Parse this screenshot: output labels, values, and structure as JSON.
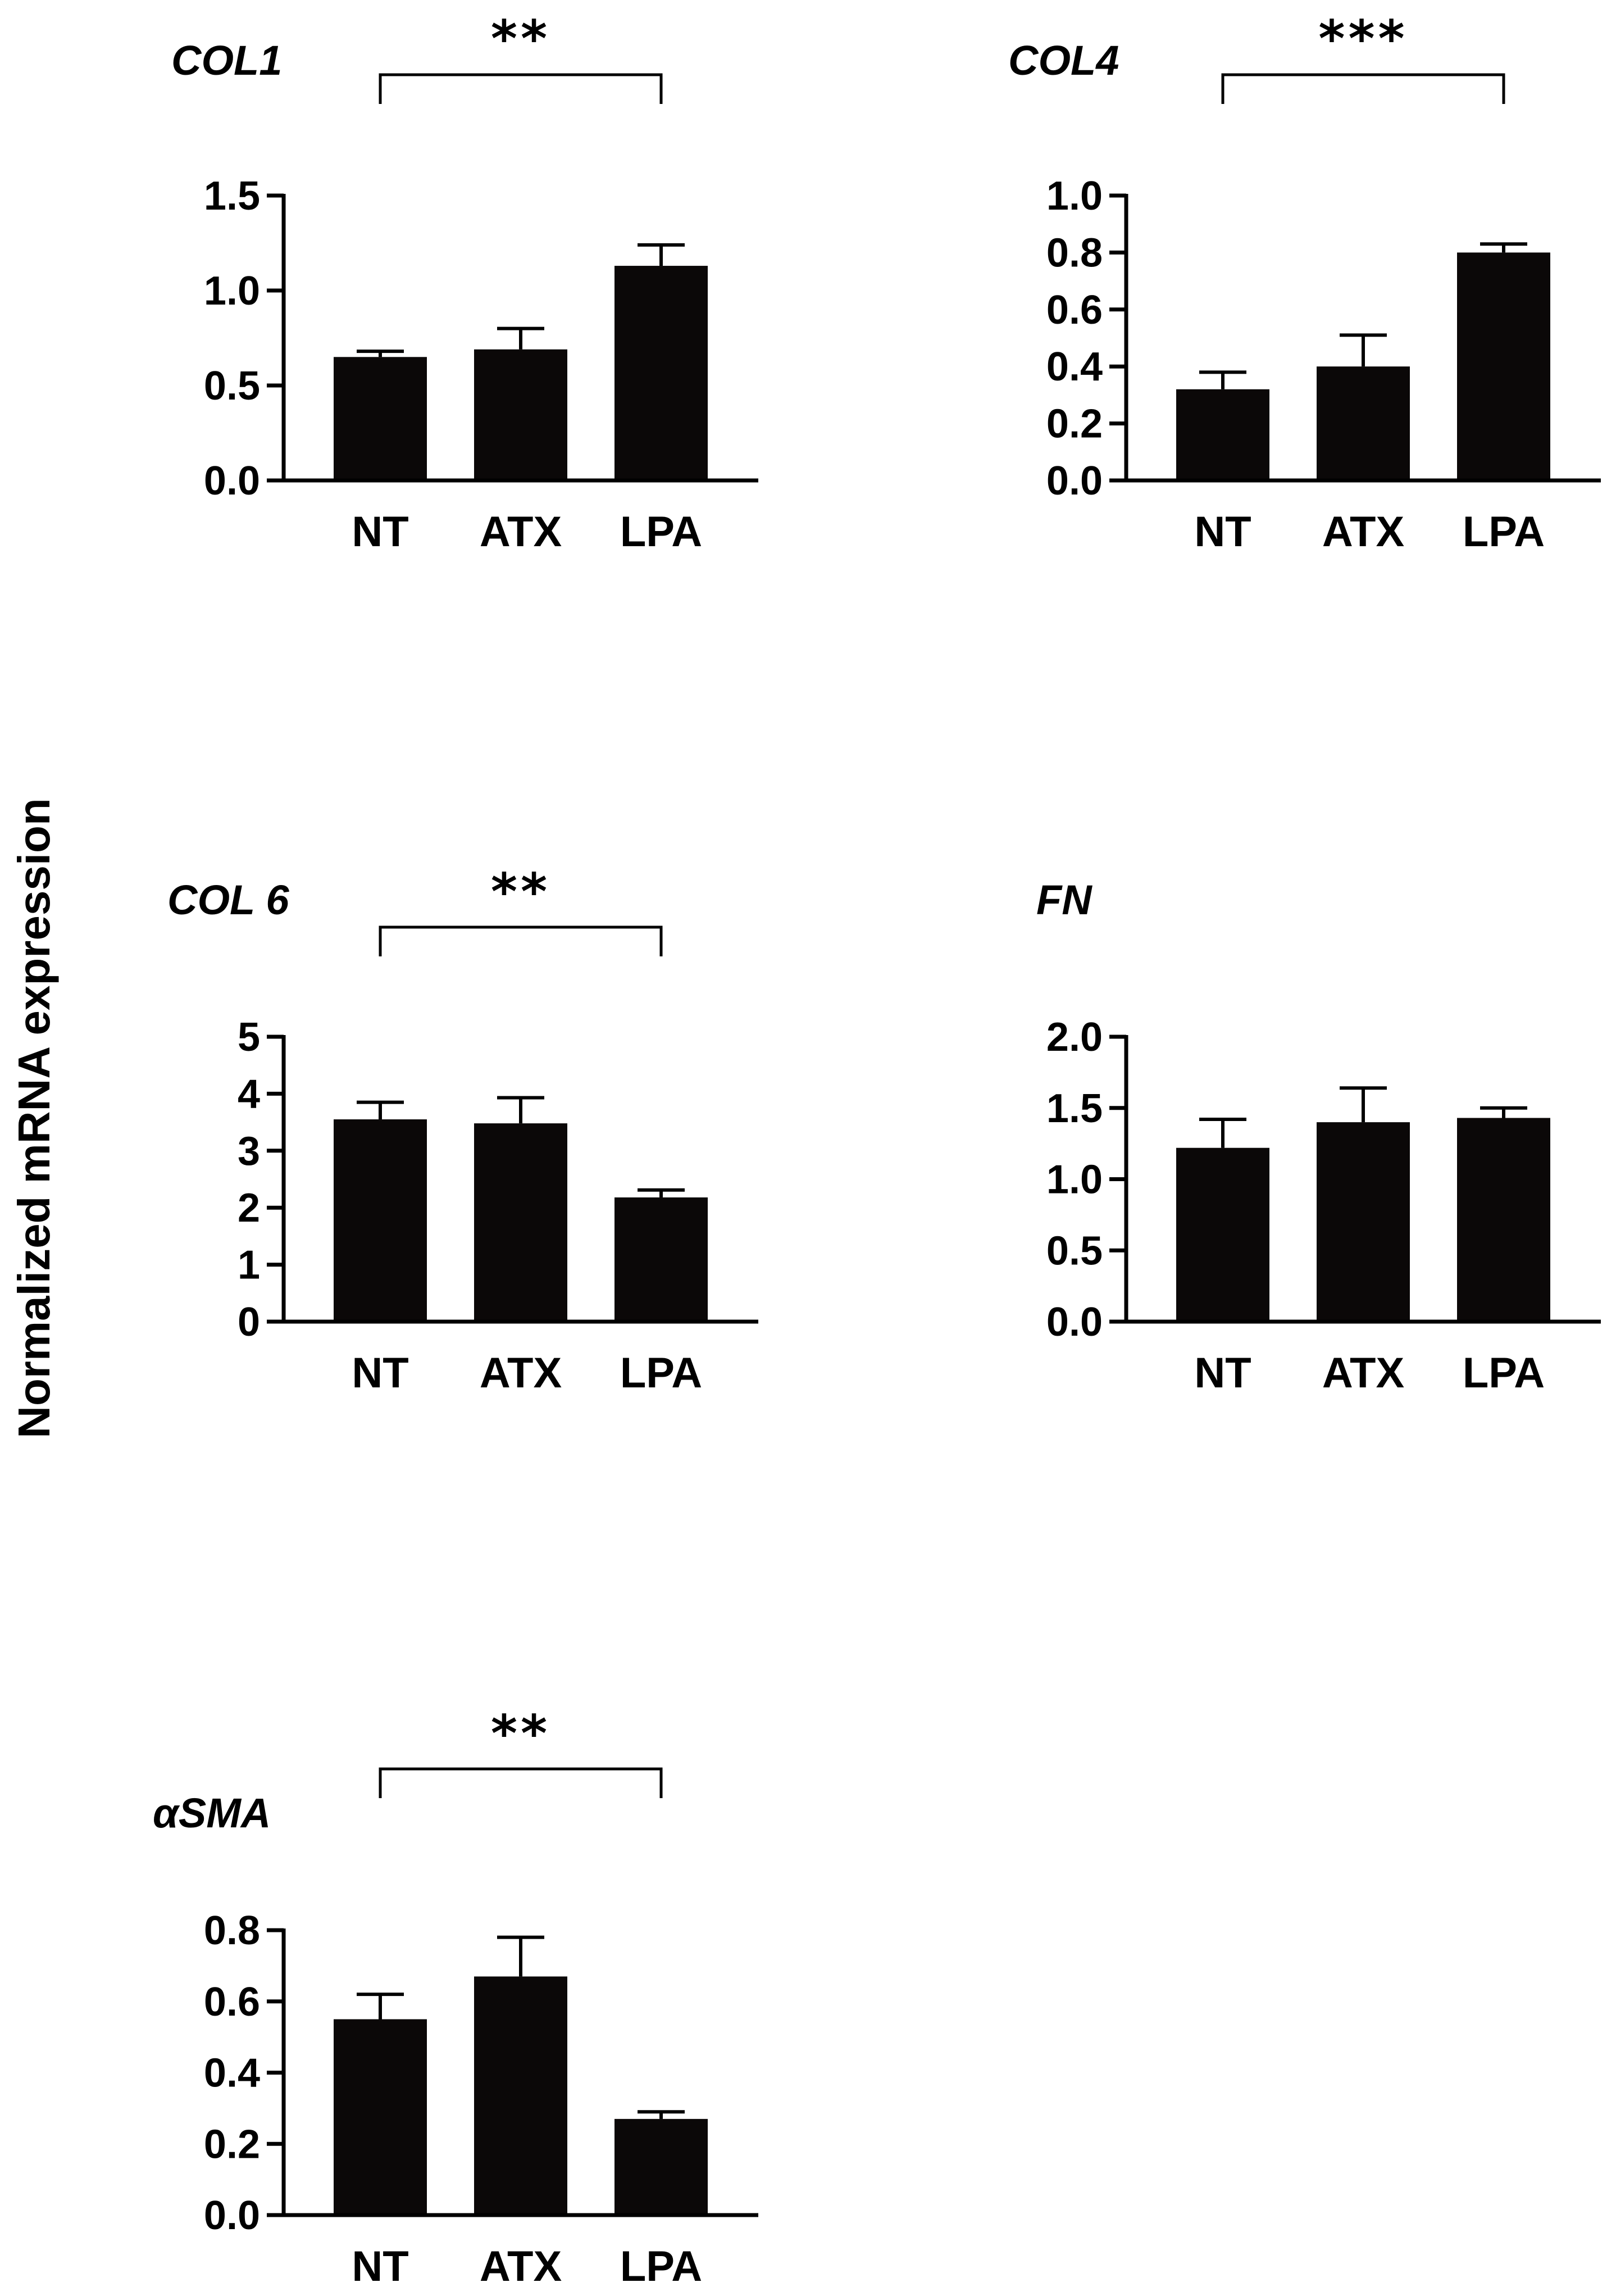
{
  "figure": {
    "ylabel": "Normalized mRNA expression"
  },
  "colors": {
    "bar": "#0b0808",
    "axis": "#000000",
    "background": "#ffffff"
  },
  "chart_data": [
    {
      "type": "bar",
      "title": "COL1",
      "categories": [
        "NT",
        "ATX",
        "LPA"
      ],
      "values": [
        0.65,
        0.69,
        1.13
      ],
      "errors": [
        0.03,
        0.11,
        0.11
      ],
      "ylim": [
        0,
        1.5
      ],
      "yticks": [
        "0.0",
        "0.5",
        "1.0",
        "1.5"
      ],
      "ytick_values": [
        0,
        0.5,
        1.0,
        1.5
      ],
      "significance": {
        "from": "NT",
        "to": "LPA",
        "label": "**"
      }
    },
    {
      "type": "bar",
      "title": "COL4",
      "categories": [
        "NT",
        "ATX",
        "LPA"
      ],
      "values": [
        0.32,
        0.4,
        0.8
      ],
      "errors": [
        0.06,
        0.11,
        0.03
      ],
      "ylim": [
        0,
        1.0
      ],
      "yticks": [
        "0.0",
        "0.2",
        "0.4",
        "0.6",
        "0.8",
        "1.0"
      ],
      "ytick_values": [
        0,
        0.2,
        0.4,
        0.6,
        0.8,
        1.0
      ],
      "significance": {
        "from": "NT",
        "to": "LPA",
        "label": "***"
      }
    },
    {
      "type": "bar",
      "title": "COL 6",
      "categories": [
        "NT",
        "ATX",
        "LPA"
      ],
      "values": [
        3.55,
        3.48,
        2.18
      ],
      "errors": [
        0.3,
        0.45,
        0.13
      ],
      "ylim": [
        0,
        5
      ],
      "yticks": [
        "0",
        "1",
        "2",
        "3",
        "4",
        "5"
      ],
      "ytick_values": [
        0,
        1,
        2,
        3,
        4,
        5
      ],
      "significance": {
        "from": "NT",
        "to": "LPA",
        "label": "**"
      }
    },
    {
      "type": "bar",
      "title": "FN",
      "categories": [
        "NT",
        "ATX",
        "LPA"
      ],
      "values": [
        1.22,
        1.4,
        1.43
      ],
      "errors": [
        0.2,
        0.24,
        0.07
      ],
      "ylim": [
        0,
        2.0
      ],
      "yticks": [
        "0.0",
        "0.5",
        "1.0",
        "1.5",
        "2.0"
      ],
      "ytick_values": [
        0,
        0.5,
        1.0,
        1.5,
        2.0
      ],
      "significance": null
    },
    {
      "type": "bar",
      "title": "αSMA",
      "categories": [
        "NT",
        "ATX",
        "LPA"
      ],
      "values": [
        0.55,
        0.67,
        0.27
      ],
      "errors": [
        0.07,
        0.11,
        0.02
      ],
      "ylim": [
        0,
        0.8
      ],
      "yticks": [
        "0.0",
        "0.2",
        "0.4",
        "0.6",
        "0.8"
      ],
      "ytick_values": [
        0,
        0.2,
        0.4,
        0.6,
        0.8
      ],
      "significance": {
        "from": "NT",
        "to": "LPA",
        "label": "**"
      }
    }
  ]
}
